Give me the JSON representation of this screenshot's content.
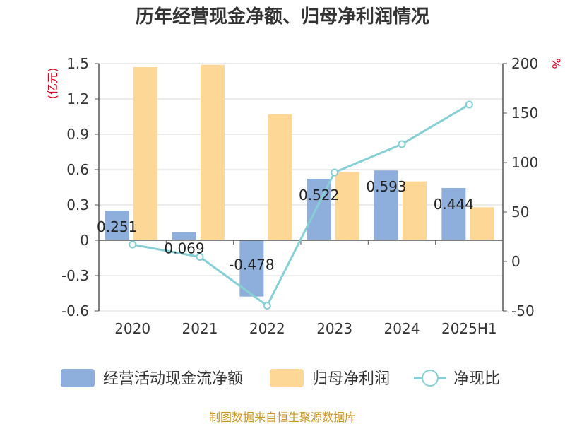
{
  "chart_data": {
    "type": "bar",
    "title": "历年经营现金净额、归母净利润情况",
    "categories": [
      "2020",
      "2021",
      "2022",
      "2023",
      "2024",
      "2025H1"
    ],
    "series": [
      {
        "name": "经营活动现金流净额",
        "type": "bar",
        "axis": "left",
        "color": "#8eaedb",
        "values": [
          0.251,
          0.069,
          -0.478,
          0.522,
          0.593,
          0.444
        ],
        "labels": [
          "0.251",
          "0.069",
          "-0.478",
          "0.522",
          "0.593",
          "0.444"
        ]
      },
      {
        "name": "归母净利润",
        "type": "bar",
        "axis": "left",
        "color": "#fdd795",
        "values": [
          1.47,
          1.49,
          1.07,
          0.58,
          0.5,
          0.28
        ]
      },
      {
        "name": "净现比",
        "type": "line",
        "axis": "right",
        "color": "#86cfd4",
        "values": [
          17.1,
          4.6,
          -44.7,
          90.0,
          118.6,
          158.6
        ]
      }
    ],
    "yleft": {
      "unit": "(亿元)",
      "ylim": [
        -0.6,
        1.5
      ],
      "ticks": [
        "1.5",
        "1.2",
        "0.9",
        "0.6",
        "0.3",
        "0",
        "-0.3",
        "-0.6"
      ]
    },
    "yright": {
      "unit": "%",
      "ylim": [
        -50,
        200
      ],
      "ticks": [
        "200",
        "150",
        "100",
        "50",
        "0",
        "-50"
      ]
    },
    "grid": true,
    "legend_position": "bottom"
  },
  "legend": [
    {
      "label": "经营活动现金流净额",
      "icon": "blue-bar-swatch"
    },
    {
      "label": "归母净利润",
      "icon": "orange-bar-swatch"
    },
    {
      "label": "净现比",
      "icon": "line-circle-marker"
    }
  ],
  "source": "制图数据来自恒生聚源数据库"
}
